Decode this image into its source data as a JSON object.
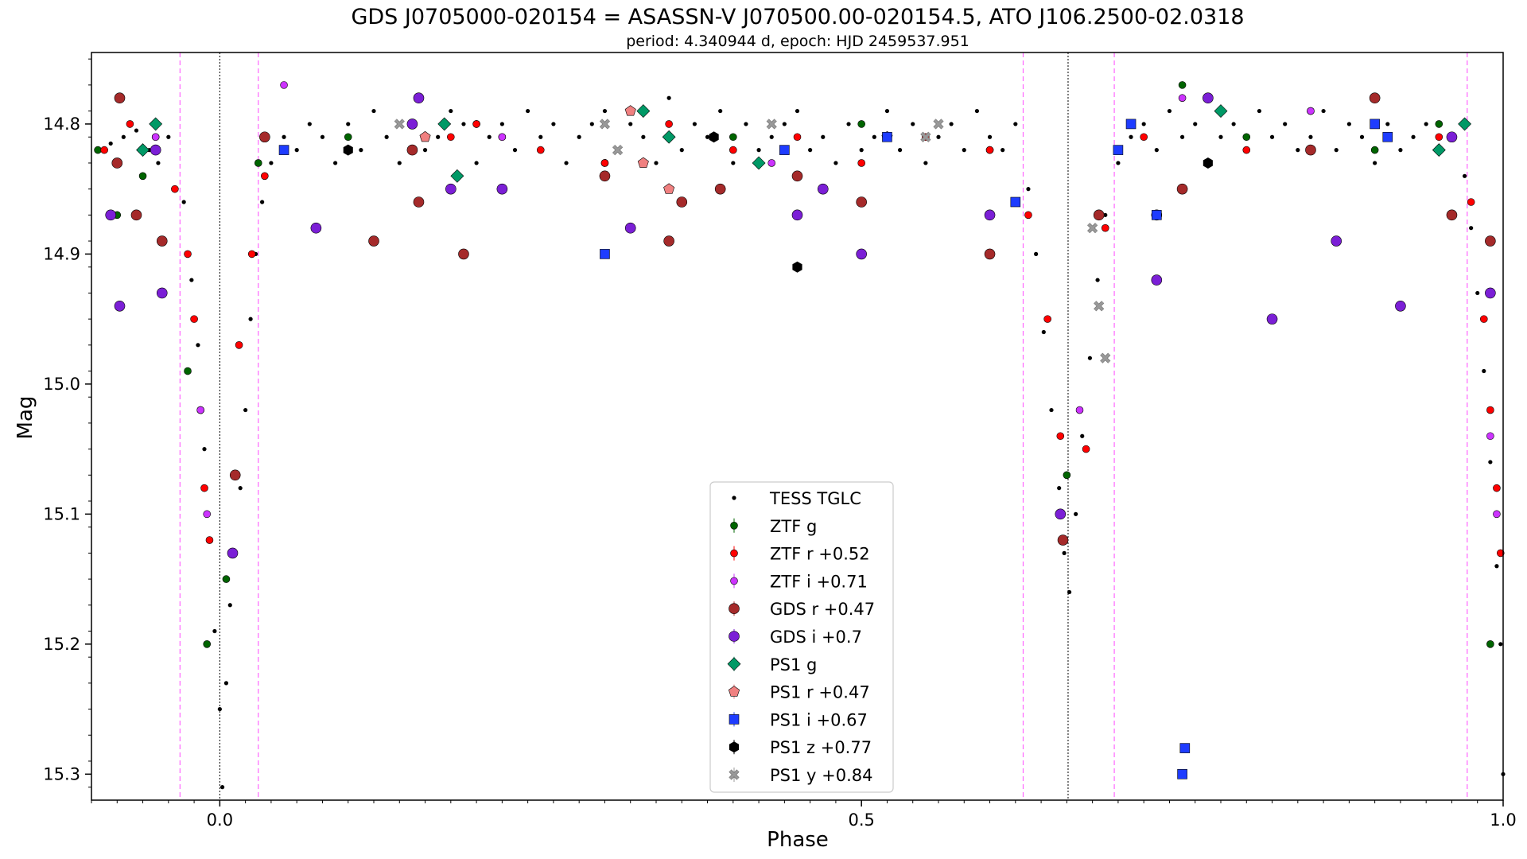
{
  "chart_data": {
    "type": "scatter",
    "title": "GDS J0705000-020154 = ASASSN-V J070500.00-020154.5, ATO J106.2500-02.0318",
    "subtitle": "period: 4.340944 d, epoch: HJD 2459537.951",
    "xlabel": "Phase",
    "ylabel": "Mag",
    "xlim": [
      -0.1,
      1.0
    ],
    "ylim": [
      15.32,
      14.745
    ],
    "y_inverted": true,
    "x_ticks": [
      0.0,
      0.5,
      1.0
    ],
    "x_tick_labels": [
      "0.0",
      "0.5",
      "1.0"
    ],
    "y_ticks": [
      14.8,
      14.9,
      15.0,
      15.1,
      15.2,
      15.3
    ],
    "y_tick_labels": [
      "14.8",
      "14.9",
      "15.0",
      "15.1",
      "15.2",
      "15.3"
    ],
    "grid": false,
    "legend_position": "bottom-center",
    "vlines_black_dotted": [
      0.0,
      0.661
    ],
    "vlines_magenta_dashed": [
      -0.031,
      0.03,
      0.626,
      0.697,
      0.972
    ],
    "series": [
      {
        "name": "TESS TGLC",
        "marker": "dot",
        "color": "#000000",
        "points": [
          [
            -0.085,
            14.815
          ],
          [
            -0.075,
            14.81
          ],
          [
            -0.065,
            14.805
          ],
          [
            -0.055,
            14.82
          ],
          [
            -0.048,
            14.83
          ],
          [
            -0.04,
            14.81
          ],
          [
            -0.028,
            14.86
          ],
          [
            -0.022,
            14.92
          ],
          [
            -0.017,
            14.97
          ],
          [
            -0.012,
            15.05
          ],
          [
            -0.008,
            15.12
          ],
          [
            -0.004,
            15.19
          ],
          [
            0.0,
            15.25
          ],
          [
            0.002,
            15.31
          ],
          [
            0.005,
            15.23
          ],
          [
            0.008,
            15.17
          ],
          [
            0.012,
            15.13
          ],
          [
            0.016,
            15.08
          ],
          [
            0.02,
            15.02
          ],
          [
            0.024,
            14.95
          ],
          [
            0.028,
            14.9
          ],
          [
            0.033,
            14.86
          ],
          [
            0.04,
            14.83
          ],
          [
            0.05,
            14.81
          ],
          [
            0.06,
            14.82
          ],
          [
            0.07,
            14.8
          ],
          [
            0.08,
            14.81
          ],
          [
            0.09,
            14.83
          ],
          [
            0.1,
            14.8
          ],
          [
            0.11,
            14.82
          ],
          [
            0.12,
            14.79
          ],
          [
            0.13,
            14.81
          ],
          [
            0.14,
            14.83
          ],
          [
            0.15,
            14.8
          ],
          [
            0.16,
            14.82
          ],
          [
            0.17,
            14.81
          ],
          [
            0.18,
            14.79
          ],
          [
            0.19,
            14.8
          ],
          [
            0.2,
            14.83
          ],
          [
            0.21,
            14.81
          ],
          [
            0.22,
            14.8
          ],
          [
            0.23,
            14.82
          ],
          [
            0.24,
            14.79
          ],
          [
            0.25,
            14.81
          ],
          [
            0.26,
            14.8
          ],
          [
            0.27,
            14.83
          ],
          [
            0.28,
            14.81
          ],
          [
            0.29,
            14.8
          ],
          [
            0.3,
            14.79
          ],
          [
            0.31,
            14.82
          ],
          [
            0.32,
            14.8
          ],
          [
            0.33,
            14.81
          ],
          [
            0.34,
            14.83
          ],
          [
            0.35,
            14.78
          ],
          [
            0.36,
            14.82
          ],
          [
            0.37,
            14.8
          ],
          [
            0.38,
            14.81
          ],
          [
            0.39,
            14.79
          ],
          [
            0.4,
            14.83
          ],
          [
            0.41,
            14.8
          ],
          [
            0.42,
            14.82
          ],
          [
            0.43,
            14.81
          ],
          [
            0.44,
            14.8
          ],
          [
            0.45,
            14.79
          ],
          [
            0.46,
            14.82
          ],
          [
            0.47,
            14.81
          ],
          [
            0.48,
            14.83
          ],
          [
            0.49,
            14.8
          ],
          [
            0.5,
            14.82
          ],
          [
            0.51,
            14.81
          ],
          [
            0.52,
            14.79
          ],
          [
            0.53,
            14.82
          ],
          [
            0.54,
            14.8
          ],
          [
            0.55,
            14.83
          ],
          [
            0.56,
            14.81
          ],
          [
            0.57,
            14.8
          ],
          [
            0.58,
            14.82
          ],
          [
            0.59,
            14.79
          ],
          [
            0.6,
            14.81
          ],
          [
            0.61,
            14.82
          ],
          [
            0.62,
            14.8
          ],
          [
            0.63,
            14.85
          ],
          [
            0.636,
            14.9
          ],
          [
            0.642,
            14.96
          ],
          [
            0.648,
            15.02
          ],
          [
            0.654,
            15.08
          ],
          [
            0.658,
            15.13
          ],
          [
            0.662,
            15.16
          ],
          [
            0.667,
            15.1
          ],
          [
            0.672,
            15.04
          ],
          [
            0.678,
            14.98
          ],
          [
            0.684,
            14.92
          ],
          [
            0.69,
            14.87
          ],
          [
            0.7,
            14.83
          ],
          [
            0.71,
            14.81
          ],
          [
            0.72,
            14.8
          ],
          [
            0.73,
            14.82
          ],
          [
            0.74,
            14.79
          ],
          [
            0.75,
            14.81
          ],
          [
            0.76,
            14.8
          ],
          [
            0.77,
            14.83
          ],
          [
            0.78,
            14.81
          ],
          [
            0.79,
            14.8
          ],
          [
            0.8,
            14.82
          ],
          [
            0.81,
            14.79
          ],
          [
            0.82,
            14.81
          ],
          [
            0.83,
            14.8
          ],
          [
            0.84,
            14.82
          ],
          [
            0.85,
            14.81
          ],
          [
            0.86,
            14.79
          ],
          [
            0.87,
            14.82
          ],
          [
            0.88,
            14.8
          ],
          [
            0.89,
            14.81
          ],
          [
            0.9,
            14.83
          ],
          [
            0.91,
            14.8
          ],
          [
            0.92,
            14.82
          ],
          [
            0.93,
            14.81
          ],
          [
            0.94,
            14.8
          ],
          [
            0.95,
            14.82
          ],
          [
            0.96,
            14.81
          ],
          [
            0.97,
            14.84
          ],
          [
            0.975,
            14.88
          ],
          [
            0.98,
            14.93
          ],
          [
            0.985,
            14.99
          ],
          [
            0.99,
            15.06
          ],
          [
            0.995,
            15.14
          ],
          [
            0.998,
            15.2
          ],
          [
            1.0,
            15.3
          ]
        ]
      },
      {
        "name": "ZTF g",
        "marker": "circle-small",
        "color": "#006400",
        "points": [
          [
            -0.095,
            14.82
          ],
          [
            -0.08,
            14.87
          ],
          [
            -0.06,
            14.84
          ],
          [
            -0.025,
            14.99
          ],
          [
            -0.01,
            15.2
          ],
          [
            0.005,
            15.15
          ],
          [
            0.03,
            14.83
          ],
          [
            0.1,
            14.81
          ],
          [
            0.2,
            14.8
          ],
          [
            0.3,
            14.83
          ],
          [
            0.4,
            14.81
          ],
          [
            0.5,
            14.8
          ],
          [
            0.6,
            14.82
          ],
          [
            0.66,
            15.07
          ],
          [
            0.7,
            14.82
          ],
          [
            0.75,
            14.77
          ],
          [
            0.8,
            14.81
          ],
          [
            0.85,
            14.79
          ],
          [
            0.9,
            14.82
          ],
          [
            0.95,
            14.8
          ],
          [
            0.99,
            15.2
          ]
        ]
      },
      {
        "name": "ZTF r +0.52",
        "marker": "circle-small",
        "color": "#ff0000",
        "points": [
          [
            -0.09,
            14.82
          ],
          [
            -0.07,
            14.8
          ],
          [
            -0.05,
            14.81
          ],
          [
            -0.035,
            14.85
          ],
          [
            -0.025,
            14.9
          ],
          [
            -0.02,
            14.95
          ],
          [
            -0.015,
            15.02
          ],
          [
            -0.012,
            15.08
          ],
          [
            -0.008,
            15.12
          ],
          [
            0.015,
            14.97
          ],
          [
            0.025,
            14.9
          ],
          [
            0.035,
            14.84
          ],
          [
            0.1,
            14.82
          ],
          [
            0.18,
            14.81
          ],
          [
            0.2,
            14.8
          ],
          [
            0.22,
            14.81
          ],
          [
            0.25,
            14.82
          ],
          [
            0.3,
            14.83
          ],
          [
            0.35,
            14.8
          ],
          [
            0.4,
            14.82
          ],
          [
            0.45,
            14.81
          ],
          [
            0.5,
            14.83
          ],
          [
            0.55,
            14.81
          ],
          [
            0.6,
            14.82
          ],
          [
            0.63,
            14.87
          ],
          [
            0.645,
            14.95
          ],
          [
            0.655,
            15.04
          ],
          [
            0.675,
            15.05
          ],
          [
            0.69,
            14.88
          ],
          [
            0.72,
            14.81
          ],
          [
            0.8,
            14.82
          ],
          [
            0.9,
            14.8
          ],
          [
            0.95,
            14.81
          ],
          [
            0.975,
            14.86
          ],
          [
            0.985,
            14.95
          ],
          [
            0.99,
            15.02
          ],
          [
            0.995,
            15.08
          ],
          [
            0.998,
            15.13
          ]
        ]
      },
      {
        "name": "ZTF i +0.71",
        "marker": "circle-small",
        "color": "#cc33ff",
        "points": [
          [
            -0.05,
            14.81
          ],
          [
            -0.015,
            15.02
          ],
          [
            -0.01,
            15.1
          ],
          [
            0.05,
            14.77
          ],
          [
            0.22,
            14.81
          ],
          [
            0.43,
            14.83
          ],
          [
            0.67,
            15.02
          ],
          [
            0.75,
            14.78
          ],
          [
            0.85,
            14.79
          ],
          [
            0.99,
            15.04
          ],
          [
            0.995,
            15.1
          ]
        ]
      },
      {
        "name": "GDS r +0.47",
        "marker": "circle-large",
        "color": "#a52a2a",
        "points": [
          [
            -0.08,
            14.83
          ],
          [
            -0.078,
            14.78
          ],
          [
            -0.065,
            14.87
          ],
          [
            -0.045,
            14.89
          ],
          [
            0.012,
            15.07
          ],
          [
            0.035,
            14.81
          ],
          [
            0.12,
            14.89
          ],
          [
            0.15,
            14.82
          ],
          [
            0.155,
            14.86
          ],
          [
            0.19,
            14.9
          ],
          [
            0.3,
            14.84
          ],
          [
            0.35,
            14.89
          ],
          [
            0.36,
            14.86
          ],
          [
            0.39,
            14.85
          ],
          [
            0.45,
            14.84
          ],
          [
            0.5,
            14.86
          ],
          [
            0.6,
            14.9
          ],
          [
            0.657,
            15.12
          ],
          [
            0.685,
            14.87
          ],
          [
            0.73,
            14.87
          ],
          [
            0.75,
            14.85
          ],
          [
            0.85,
            14.82
          ],
          [
            0.9,
            14.78
          ],
          [
            0.96,
            14.87
          ],
          [
            0.99,
            14.89
          ]
        ]
      },
      {
        "name": "GDS i +0.7",
        "marker": "circle-large",
        "color": "#7b1fd6",
        "points": [
          [
            -0.085,
            14.87
          ],
          [
            -0.078,
            14.94
          ],
          [
            -0.05,
            14.82
          ],
          [
            -0.045,
            14.93
          ],
          [
            0.01,
            15.13
          ],
          [
            0.075,
            14.88
          ],
          [
            0.15,
            14.8
          ],
          [
            0.155,
            14.78
          ],
          [
            0.18,
            14.85
          ],
          [
            0.22,
            14.85
          ],
          [
            0.32,
            14.88
          ],
          [
            0.45,
            14.87
          ],
          [
            0.47,
            14.85
          ],
          [
            0.5,
            14.9
          ],
          [
            0.6,
            14.87
          ],
          [
            0.655,
            15.1
          ],
          [
            0.73,
            14.92
          ],
          [
            0.77,
            14.78
          ],
          [
            0.82,
            14.95
          ],
          [
            0.87,
            14.89
          ],
          [
            0.92,
            14.94
          ],
          [
            0.96,
            14.81
          ],
          [
            0.99,
            14.93
          ]
        ]
      },
      {
        "name": "PS1 g",
        "marker": "diamond",
        "color": "#009966",
        "points": [
          [
            -0.06,
            14.82
          ],
          [
            -0.05,
            14.8
          ],
          [
            0.175,
            14.8
          ],
          [
            0.185,
            14.84
          ],
          [
            0.33,
            14.79
          ],
          [
            0.35,
            14.81
          ],
          [
            0.42,
            14.83
          ],
          [
            0.78,
            14.79
          ],
          [
            0.95,
            14.82
          ],
          [
            0.97,
            14.8
          ]
        ]
      },
      {
        "name": "PS1 r +0.47",
        "marker": "pentagon",
        "color": "#f08080",
        "points": [
          [
            0.16,
            14.81
          ],
          [
            0.32,
            14.79
          ],
          [
            0.33,
            14.83
          ],
          [
            0.35,
            14.85
          ],
          [
            0.52,
            14.81
          ]
        ]
      },
      {
        "name": "PS1 i +0.67",
        "marker": "square",
        "color": "#1e3cff",
        "points": [
          [
            0.05,
            14.82
          ],
          [
            0.3,
            14.9
          ],
          [
            0.44,
            14.82
          ],
          [
            0.52,
            14.81
          ],
          [
            0.62,
            14.86
          ],
          [
            0.7,
            14.82
          ],
          [
            0.71,
            14.8
          ],
          [
            0.73,
            14.87
          ],
          [
            0.75,
            15.3
          ],
          [
            0.752,
            15.28
          ],
          [
            0.9,
            14.8
          ],
          [
            0.91,
            14.81
          ]
        ]
      },
      {
        "name": "PS1 z +0.77",
        "marker": "hexagon",
        "color": "#000000",
        "points": [
          [
            0.1,
            14.82
          ],
          [
            0.385,
            14.81
          ],
          [
            0.45,
            14.91
          ],
          [
            0.77,
            14.83
          ]
        ]
      },
      {
        "name": "PS1 y +0.84",
        "marker": "x-filled",
        "color": "#999999",
        "points": [
          [
            0.14,
            14.8
          ],
          [
            0.3,
            14.8
          ],
          [
            0.31,
            14.82
          ],
          [
            0.43,
            14.8
          ],
          [
            0.55,
            14.81
          ],
          [
            0.56,
            14.8
          ],
          [
            0.68,
            14.88
          ],
          [
            0.685,
            14.94
          ],
          [
            0.69,
            14.98
          ]
        ]
      }
    ]
  }
}
